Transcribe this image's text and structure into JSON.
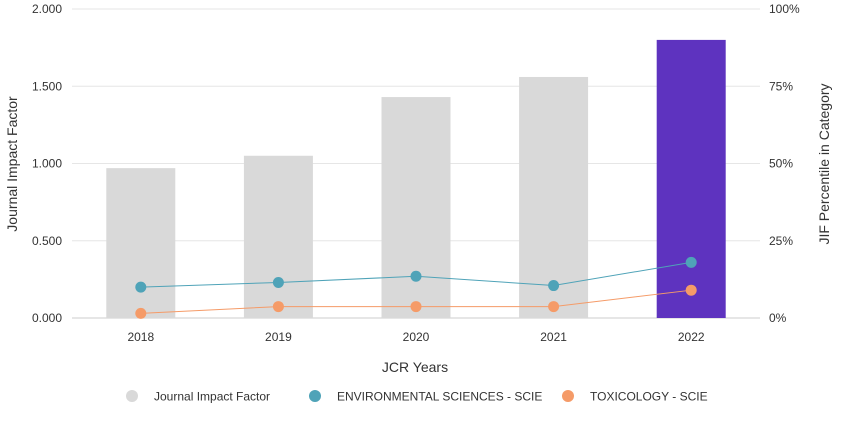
{
  "chart_data": {
    "type": "bar+line",
    "categories": [
      "2018",
      "2019",
      "2020",
      "2021",
      "2022"
    ],
    "xlabel": "JCR Years",
    "ylabel_left": "Journal Impact Factor",
    "ylabel_right": "JIF Percentile in Category",
    "ylim_left": [
      0,
      2.0
    ],
    "ylim_right": [
      0,
      100
    ],
    "left_ticks": [
      "0.000",
      "0.500",
      "1.000",
      "1.500",
      "2.000"
    ],
    "right_ticks": [
      "0%",
      "25%",
      "50%",
      "75%",
      "100%"
    ],
    "grid": true,
    "bar_series": {
      "name": "Journal Impact Factor",
      "values": [
        0.97,
        1.05,
        1.43,
        1.56,
        1.8
      ],
      "color": "#d9d9d9",
      "highlight_index": 4,
      "highlight_color": "#5e33bf"
    },
    "line_series": [
      {
        "name": "ENVIRONMENTAL SCIENCES - SCIE",
        "values": [
          10,
          11.5,
          13.5,
          10.5,
          18
        ],
        "color": "#4fa3b8"
      },
      {
        "name": "TOXICOLOGY - SCIE",
        "values": [
          1.5,
          3.7,
          3.7,
          3.7,
          9
        ],
        "color": "#f59b68"
      }
    ],
    "legend": {
      "position": "bottom",
      "items": [
        {
          "label": "Journal Impact Factor",
          "color": "#d9d9d9"
        },
        {
          "label": "ENVIRONMENTAL SCIENCES - SCIE",
          "color": "#4fa3b8"
        },
        {
          "label": "TOXICOLOGY - SCIE",
          "color": "#f59b68"
        }
      ]
    }
  }
}
